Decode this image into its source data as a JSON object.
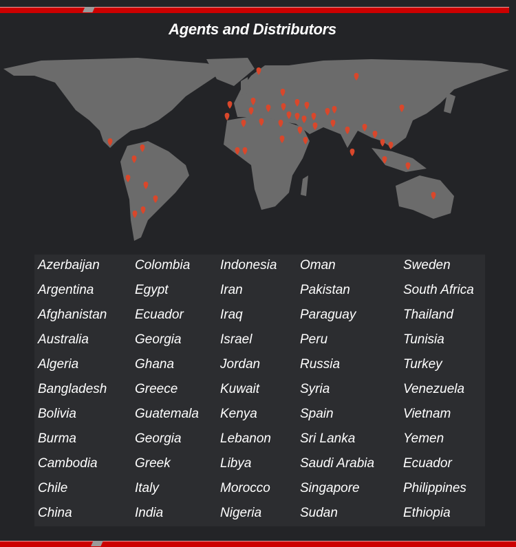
{
  "header": {
    "title": "Agents and Distributors"
  },
  "colors": {
    "accent_bar": "#cc0000",
    "background": "#232427",
    "land": "#6b6b6b",
    "marker": "#d9472b"
  },
  "map": {
    "marker_icon": "map-pin-icon"
  },
  "countries": [
    [
      "Azerbaijan",
      "Argentina",
      "Afghanistan",
      "Australia",
      "Algeria",
      "Bangladesh",
      "Bolivia",
      "Burma",
      "Cambodia",
      "Chile",
      "China"
    ],
    [
      "Colombia",
      "Egypt",
      "Ecuador",
      "Georgia",
      "Ghana",
      "Greece",
      "Guatemala",
      "Georgia",
      "Greek",
      "Italy",
      "India"
    ],
    [
      "Indonesia",
      "Iran",
      "Iraq",
      "Israel",
      "Jordan",
      "Kuwait",
      "Kenya",
      "Lebanon",
      "Libya",
      "Morocco",
      "Nigeria"
    ],
    [
      "Oman",
      "Pakistan",
      "Paraguay",
      "Peru",
      "Russia",
      "Syria",
      "Spain",
      "Sri Lanka",
      "Saudi Arabia",
      "Singapore",
      "Sudan"
    ],
    [
      "Sweden",
      "South Africa",
      "Thailand",
      "Tunisia",
      "Turkey",
      "Venezuela",
      "Vietnam",
      "Yemen",
      "Ecuador",
      "Philippines",
      "Ethiopia"
    ]
  ]
}
